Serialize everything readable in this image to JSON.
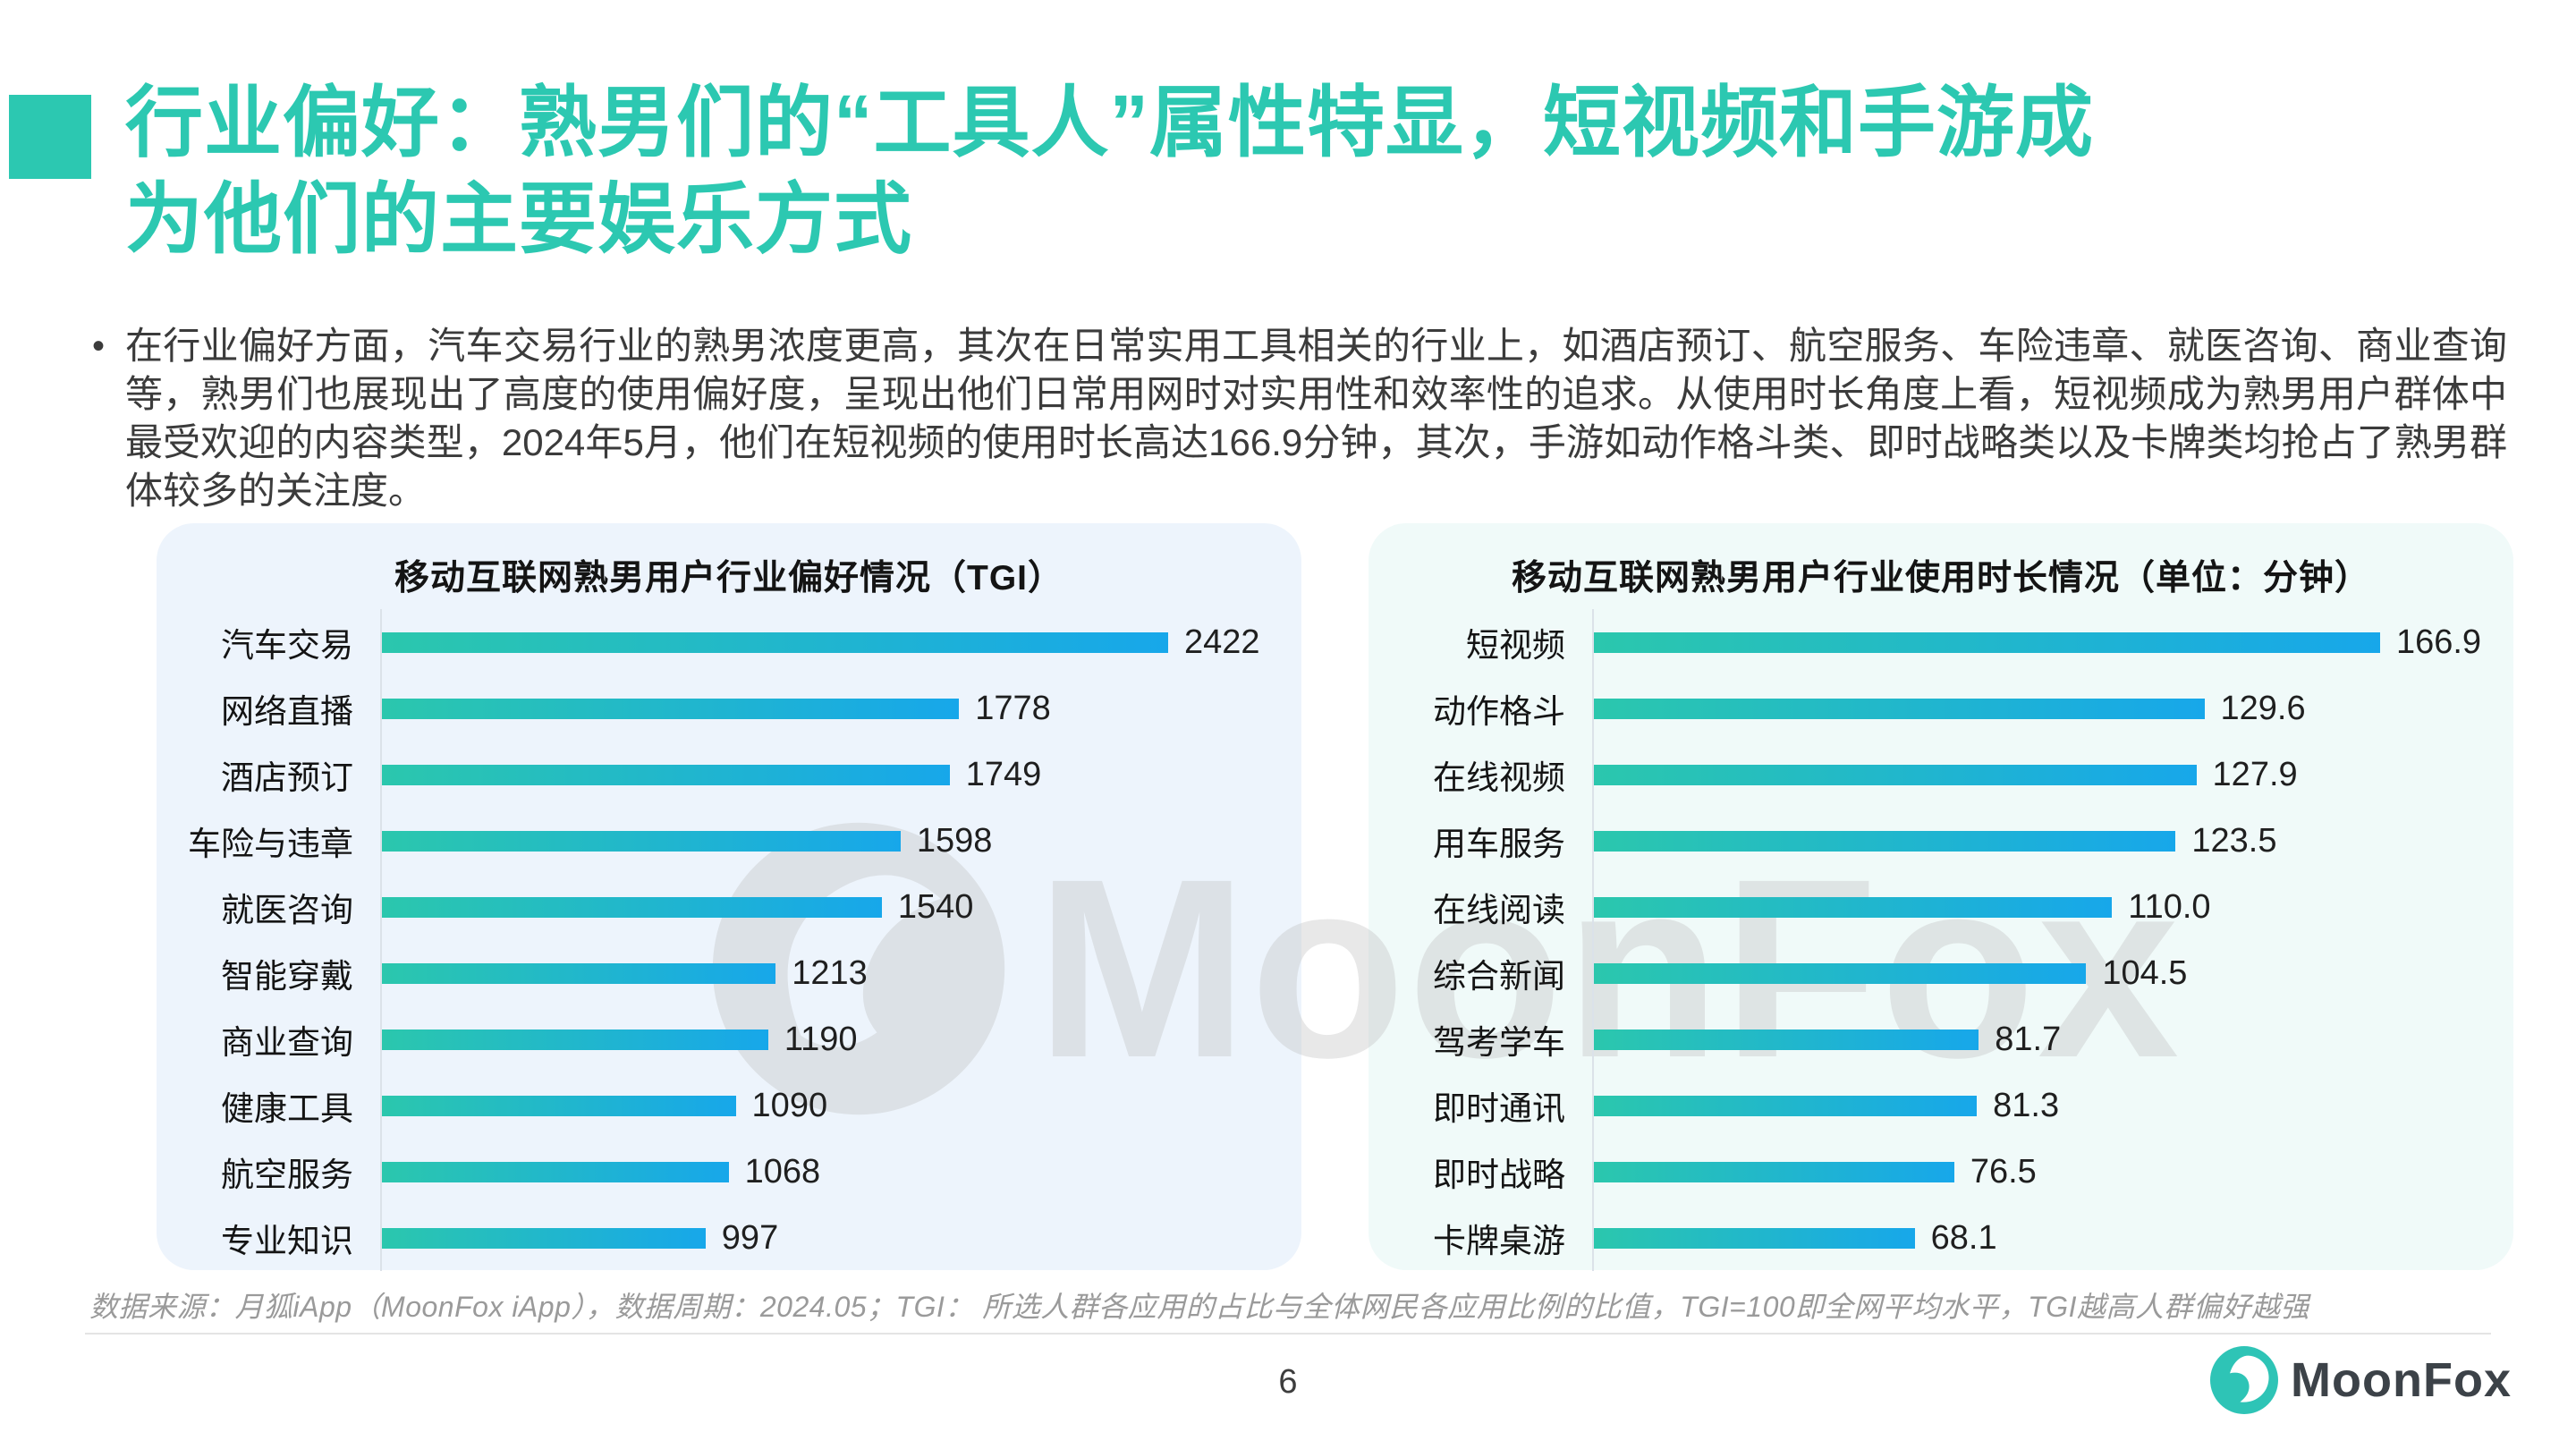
{
  "slide": {
    "title_line1": "行业偏好：熟男们的“工具人”属性特显，短视频和手游成",
    "title_line2": "为他们的主要娱乐方式",
    "bullet_text": "在行业偏好方面，汽车交易行业的熟男浓度更高，其次在日常实用工具相关的行业上，如酒店预订、航空服务、车险违章、就医咨询、商业查询等，熟男们也展现出了高度的使用偏好度，呈现出他们日常用网时对实用性和效率性的追求。从使用时长角度上看，短视频成为熟男用户群体中最受欢迎的内容类型，2024年5月，他们在短视频的使用时长高达166.9分钟，其次，手游如动作格斗类、即时战略类以及卡牌类均抢占了熟男群体较多的关注度。",
    "footnote": "数据来源：月狐iApp（MoonFox iApp），数据周期：2024.05；TGI： 所选人群各应用的占比与全体网民各应用比例的比值，TGI=100即全网平均水平，TGI越高人群偏好越强",
    "page_number": "6",
    "watermark_text": "MoonFox",
    "logo_text": "MoonFox"
  },
  "colors": {
    "accent_teal": "#2CC8B1",
    "bar_gradient_start": "#2BC7AD",
    "bar_gradient_end": "#17A7EA",
    "panel_left_bg": "#EDF4FC",
    "panel_right_bg": "#F0FAF9"
  },
  "chart_data": [
    {
      "type": "bar",
      "orientation": "horizontal",
      "title": "移动互联网熟男用户行业偏好情况（TGI）",
      "categories": [
        "汽车交易",
        "网络直播",
        "酒店预订",
        "车险与违章",
        "就医咨询",
        "智能穿戴",
        "商业查询",
        "健康工具",
        "航空服务",
        "专业知识"
      ],
      "values": [
        2422,
        1778,
        1749,
        1598,
        1540,
        1213,
        1190,
        1090,
        1068,
        997
      ],
      "value_labels": [
        "2422",
        "1778",
        "1749",
        "1598",
        "1540",
        "1213",
        "1190",
        "1090",
        "1068",
        "997"
      ],
      "xlabel": "",
      "ylabel": "",
      "grid": false,
      "legend": false
    },
    {
      "type": "bar",
      "orientation": "horizontal",
      "title": "移动互联网熟男用户行业使用时长情况（单位：分钟）",
      "categories": [
        "短视频",
        "动作格斗",
        "在线视频",
        "用车服务",
        "在线阅读",
        "综合新闻",
        "驾考学车",
        "即时通讯",
        "即时战略",
        "卡牌桌游"
      ],
      "values": [
        166.9,
        129.6,
        127.9,
        123.5,
        110.0,
        104.5,
        81.7,
        81.3,
        76.5,
        68.1
      ],
      "value_labels": [
        "166.9",
        "129.6",
        "127.9",
        "123.5",
        "110.0",
        "104.5",
        "81.7",
        "81.3",
        "76.5",
        "68.1"
      ],
      "xlabel": "",
      "ylabel": "",
      "grid": false,
      "legend": false
    }
  ]
}
